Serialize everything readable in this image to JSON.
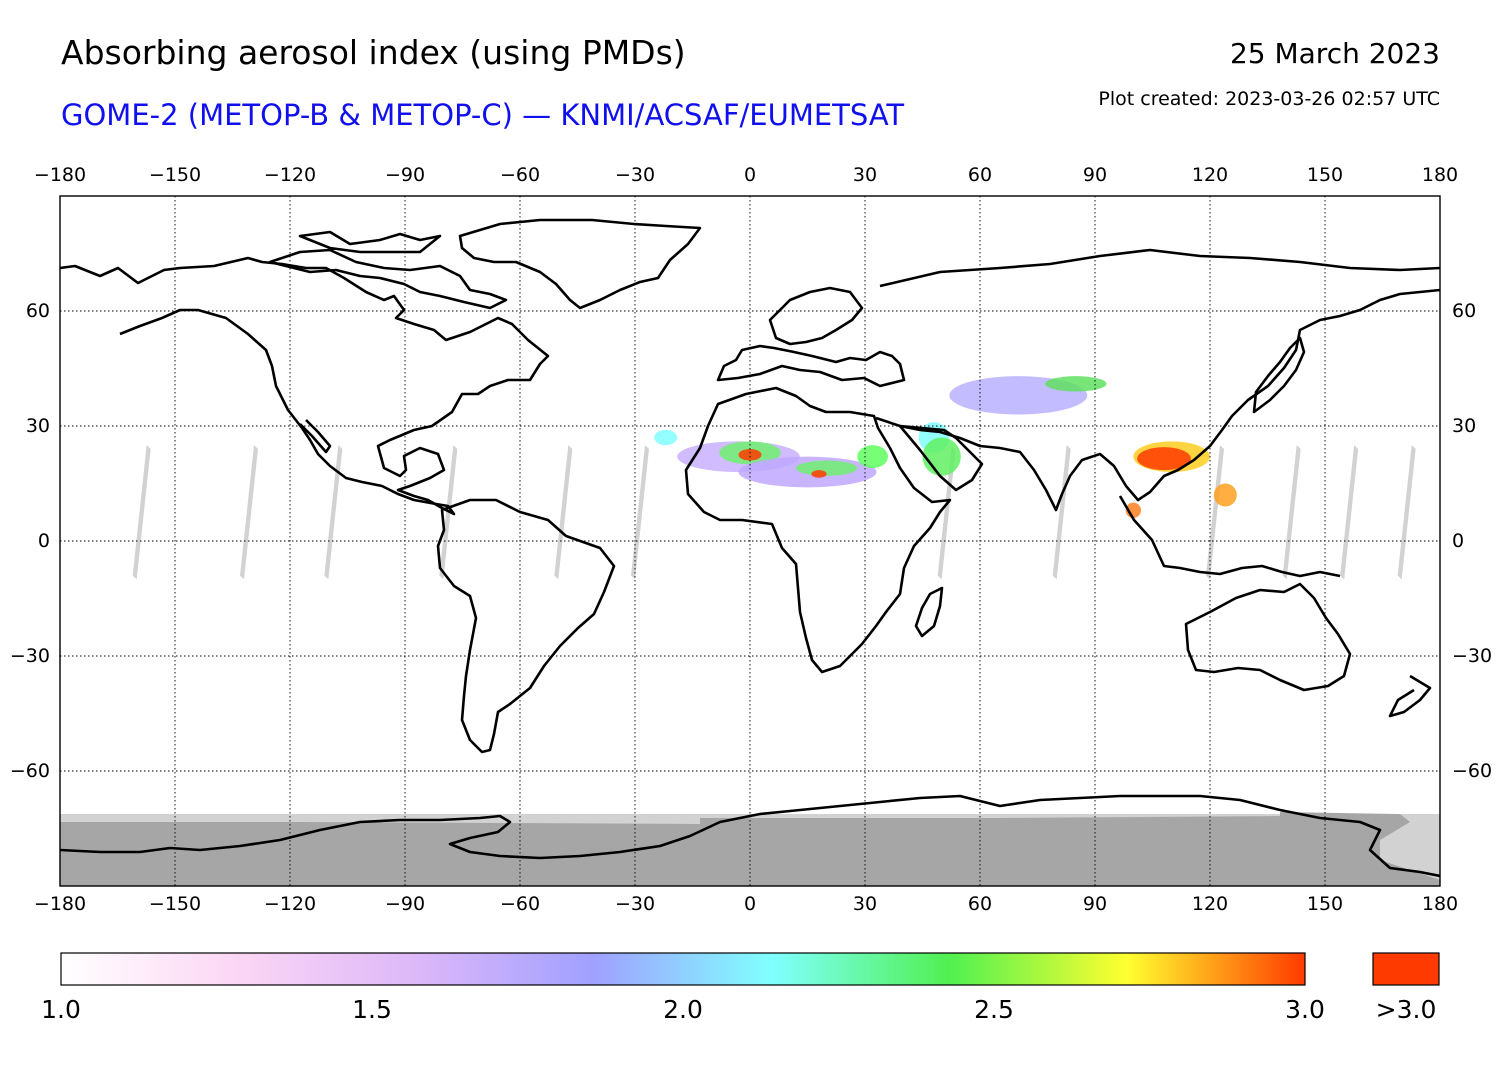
{
  "header": {
    "title": "Absorbing aerosol index (using PMDs)",
    "subtitle": "GOME-2 (METOP-B & METOP-C) — KNMI/ACSAF/EUMETSAT",
    "date": "25 March 2023",
    "plot_created": "Plot created: 2023-03-26 02:57 UTC"
  },
  "map": {
    "projection": "equirectangular",
    "lon_range": [
      -180,
      180
    ],
    "lat_range": [
      -90,
      90
    ],
    "lon_ticks": [
      "−180",
      "−150",
      "−120",
      "−90",
      "−60",
      "−30",
      "0",
      "30",
      "60",
      "90",
      "120",
      "150",
      "180"
    ],
    "lat_ticks": [
      "60",
      "30",
      "0",
      "−30",
      "−60"
    ],
    "gridlines": true,
    "colors": {
      "coastline": "#000000",
      "no_data_polar": "#a6a6a6",
      "no_data_light": "#d2d2d2",
      "aerosol_high": "#ff3a00"
    }
  },
  "colorbar": {
    "min": 1.0,
    "max": 3.0,
    "labels": [
      "1.0",
      "1.5",
      "2.0",
      "2.5",
      "3.0"
    ],
    "overflow_label": ">3.0",
    "overflow_color": "#ff3a00",
    "stops": [
      "#ffffff",
      "#fbd6f4",
      "#dcb8f8",
      "#a0a0ff",
      "#80ffff",
      "#50f050",
      "#ffff30",
      "#ff3a00"
    ]
  }
}
